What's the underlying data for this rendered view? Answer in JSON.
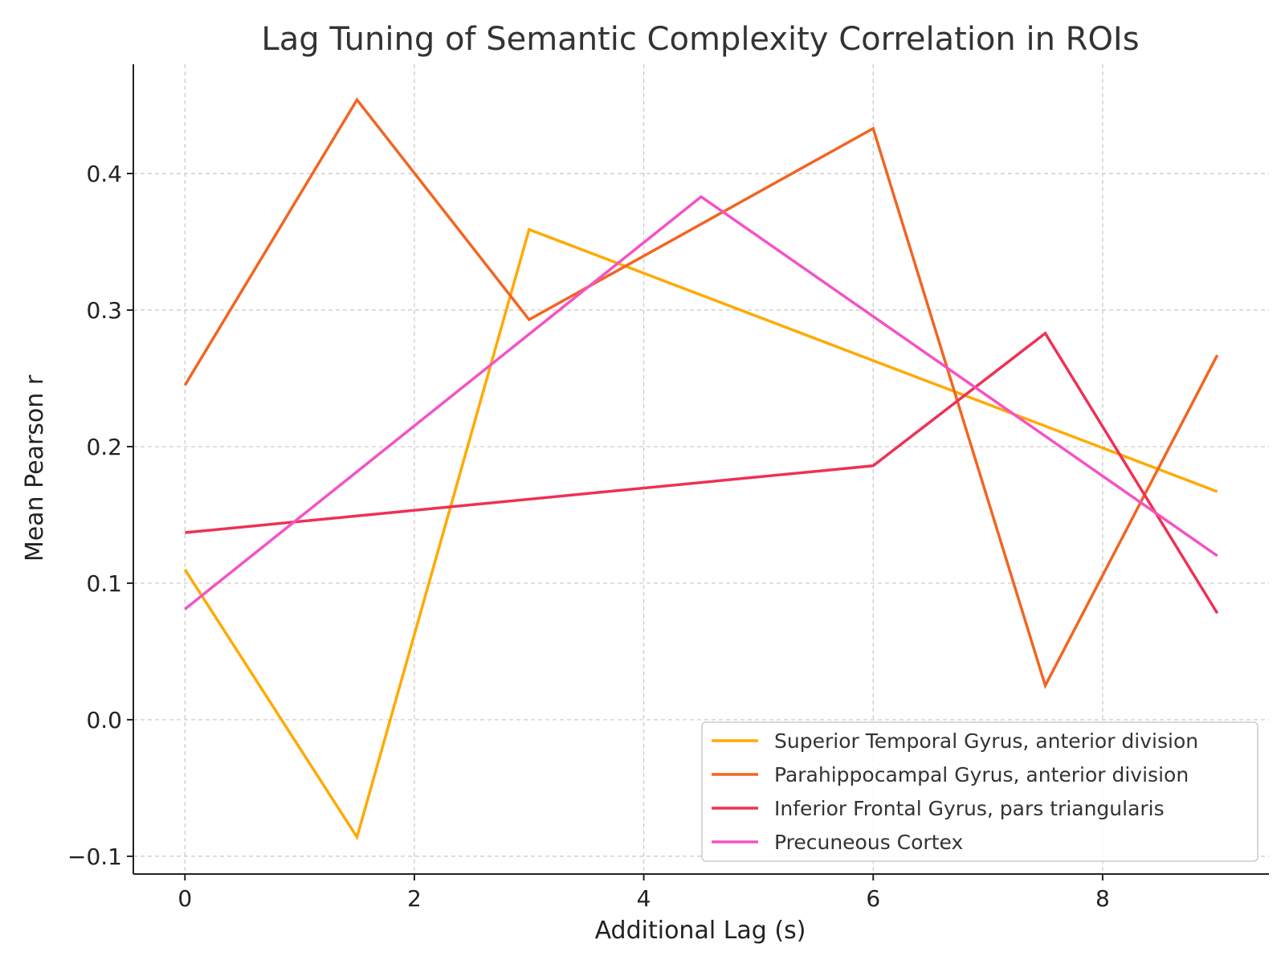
{
  "chart_data": {
    "type": "line",
    "title": "Lag Tuning of Semantic Complexity Correlation in ROIs",
    "xlabel": "Additional Lag (s)",
    "ylabel": "Mean Pearson r",
    "x": [
      0,
      1.5,
      3,
      4.5,
      6,
      7.5,
      9
    ],
    "xlim": [
      -0.45,
      9.45
    ],
    "ylim": [
      -0.113,
      0.48
    ],
    "xticks": [
      0,
      2,
      4,
      6,
      8
    ],
    "xtick_labels": [
      "0",
      "2",
      "4",
      "6",
      "8"
    ],
    "yticks": [
      -0.1,
      0.0,
      0.1,
      0.2,
      0.3,
      0.4
    ],
    "ytick_labels": [
      "−0.1",
      "0.0",
      "0.1",
      "0.2",
      "0.3",
      "0.4"
    ],
    "grid": true,
    "legend_position": "bottom-right",
    "series": [
      {
        "name": "Superior Temporal Gyrus, anterior division",
        "color": "#FFAA00",
        "x": [
          0,
          1.5,
          3,
          9
        ],
        "values": [
          0.11,
          -0.086,
          0.359,
          0.167
        ]
      },
      {
        "name": "Parahippocampal Gyrus, anterior division",
        "color": "#F26522",
        "x": [
          0,
          1.5,
          3,
          6,
          7.5,
          9
        ],
        "values": [
          0.245,
          0.454,
          0.293,
          0.433,
          0.025,
          0.267
        ]
      },
      {
        "name": "Inferior Frontal Gyrus, pars triangularis",
        "color": "#EE3155",
        "x": [
          0,
          6,
          7.5,
          9
        ],
        "values": [
          0.137,
          0.186,
          0.283,
          0.078
        ]
      },
      {
        "name": "Precuneous Cortex",
        "color": "#F552C4",
        "x": [
          0,
          4.5,
          9
        ],
        "values": [
          0.081,
          0.383,
          0.12
        ]
      }
    ]
  }
}
